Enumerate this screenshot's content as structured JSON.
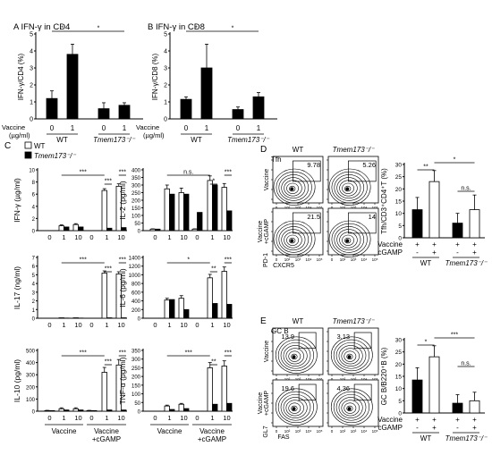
{
  "chart_data": [
    {
      "id": "A",
      "type": "bar",
      "panel_letter": "A",
      "title": "IFN-γ in CD4",
      "ylabel": "IFN-γ/CD4 (%)",
      "ylim": [
        0,
        5
      ],
      "yticks": [
        0,
        1,
        2,
        3,
        4,
        5
      ],
      "dose_label_1": "Vaccine",
      "dose_label_2": "(µg/ml)",
      "categories": [
        "0",
        "1",
        "0",
        "1"
      ],
      "groups": [
        "WT",
        "Tmem173⁻/⁻"
      ],
      "values": [
        1.2,
        3.8,
        0.6,
        0.8
      ],
      "errors": [
        0.45,
        0.6,
        0.35,
        0.15
      ],
      "sig": [
        "*",
        "*"
      ]
    },
    {
      "id": "B",
      "type": "bar",
      "panel_letter": "B",
      "title": "IFN-γ in CD8",
      "ylabel": "IFN-γ/CD8 (%)",
      "ylim": [
        0,
        5
      ],
      "yticks": [
        0,
        1,
        2,
        3,
        4,
        5
      ],
      "dose_label_1": "Vaccine",
      "dose_label_2": "(µg/ml)",
      "categories": [
        "0",
        "1",
        "0",
        "1"
      ],
      "groups": [
        "WT",
        "Tmem173⁻/⁻"
      ],
      "values": [
        1.15,
        3.0,
        0.55,
        1.3
      ],
      "errors": [
        0.15,
        1.4,
        0.15,
        0.25
      ],
      "sig": [
        "*",
        "*"
      ]
    },
    {
      "id": "C_legend",
      "type": "legend",
      "panel_letter": "C",
      "series": [
        {
          "name": "WT",
          "color": "#ffffff"
        },
        {
          "name": "Tmem173⁻/⁻",
          "color": "#000000"
        }
      ]
    },
    {
      "id": "C1",
      "type": "bar",
      "ylabel": "IFN-γ (µg/ml)",
      "ylim": [
        0,
        10
      ],
      "yticks": [
        0,
        2,
        4,
        6,
        8,
        10
      ],
      "categories": [
        "0",
        "1",
        "10",
        "0",
        "1",
        "10"
      ],
      "series": [
        {
          "name": "WT",
          "values": [
            0,
            0.8,
            1.0,
            0,
            6.6,
            7.3
          ]
        },
        {
          "name": "Tmem173⁻/⁻",
          "values": [
            0,
            0.6,
            0.6,
            0,
            0.4,
            0.5
          ]
        }
      ],
      "errors_wt": [
        0,
        0.15,
        0.15,
        0,
        0.3,
        0.4
      ],
      "sig": [
        "***",
        "***",
        "***"
      ]
    },
    {
      "id": "C2",
      "type": "bar",
      "ylabel": "IL-2 (pg/ml)",
      "ylim": [
        0,
        400
      ],
      "yticks": [
        0,
        50,
        100,
        150,
        200,
        250,
        300,
        350,
        400
      ],
      "categories": [
        "0",
        "1",
        "10",
        "0",
        "1",
        "10"
      ],
      "series": [
        {
          "name": "WT",
          "values": [
            10,
            275,
            250,
            10,
            330,
            285
          ]
        },
        {
          "name": "Tmem173⁻/⁻",
          "values": [
            10,
            240,
            240,
            120,
            300,
            130
          ]
        }
      ],
      "errors_wt": [
        2,
        25,
        30,
        2,
        30,
        25
      ],
      "sig": [
        "n.s.",
        "*",
        "***"
      ]
    },
    {
      "id": "C3",
      "type": "bar",
      "ylabel": "IL-17 (ng/ml)",
      "ylim": [
        0,
        7
      ],
      "yticks": [
        0,
        1,
        2,
        3,
        4,
        5,
        6,
        7
      ],
      "categories": [
        "0",
        "1",
        "10",
        "0",
        "1",
        "10"
      ],
      "series": [
        {
          "name": "WT",
          "values": [
            0,
            0.05,
            0.05,
            0,
            5.2,
            5.1
          ]
        },
        {
          "name": "Tmem173⁻/⁻",
          "values": [
            0,
            0.02,
            0.02,
            0,
            0.05,
            0.05
          ]
        }
      ],
      "errors_wt": [
        0,
        0,
        0,
        0,
        0.25,
        0.25
      ],
      "sig": [
        "***",
        "***",
        "***"
      ]
    },
    {
      "id": "C4",
      "type": "bar",
      "ylabel": "IL-6 (pg/ml)",
      "ylim": [
        0,
        1400
      ],
      "yticks": [
        0,
        200,
        400,
        600,
        800,
        1000,
        1200,
        1400
      ],
      "categories": [
        "0",
        "1",
        "10",
        "0",
        "1",
        "10"
      ],
      "series": [
        {
          "name": "WT",
          "values": [
            0,
            420,
            460,
            0,
            930,
            1080
          ]
        },
        {
          "name": "Tmem173⁻/⁻",
          "values": [
            0,
            430,
            200,
            0,
            340,
            320
          ]
        }
      ],
      "errors_wt": [
        0,
        40,
        60,
        0,
        80,
        100
      ],
      "sig": [
        "*",
        "**",
        "***"
      ]
    },
    {
      "id": "C5",
      "type": "bar",
      "ylabel": "IL-10 (pg/ml)",
      "ylim": [
        0,
        500
      ],
      "yticks": [
        0,
        100,
        200,
        300,
        400,
        500
      ],
      "categories": [
        "0",
        "1",
        "10",
        "0",
        "1",
        "10"
      ],
      "series": [
        {
          "name": "WT",
          "values": [
            5,
            20,
            20,
            5,
            320,
            380
          ]
        },
        {
          "name": "Tmem173⁻/⁻",
          "values": [
            5,
            10,
            10,
            5,
            10,
            10
          ]
        }
      ],
      "errors_wt": [
        2,
        8,
        8,
        2,
        40,
        45
      ],
      "sig": [
        "***",
        "***",
        "***"
      ]
    },
    {
      "id": "C6",
      "type": "bar",
      "ylabel": "TNF-α (pg/ml)",
      "ylim": [
        0,
        350
      ],
      "yticks": [
        0,
        50,
        100,
        150,
        200,
        250,
        300,
        350
      ],
      "categories": [
        "0",
        "1",
        "10",
        "0",
        "1",
        "10"
      ],
      "series": [
        {
          "name": "WT",
          "values": [
            0,
            30,
            40,
            0,
            250,
            260
          ]
        },
        {
          "name": "Tmem173⁻/⁻",
          "values": [
            0,
            10,
            15,
            0,
            40,
            45
          ]
        }
      ],
      "errors_wt": [
        0,
        5,
        5,
        0,
        30,
        30
      ],
      "sig": [
        "***",
        "**",
        "***"
      ]
    },
    {
      "id": "D",
      "type": "bar",
      "panel_letter": "D",
      "title": "Tfh",
      "ylabel": "Tfh/CD3⁺CD4⁺T (%)",
      "ylim": [
        0,
        30
      ],
      "yticks": [
        0,
        5,
        10,
        15,
        20,
        25,
        30
      ],
      "values": [
        11.5,
        23,
        6,
        11.5
      ],
      "errors": [
        5,
        4.5,
        4,
        6
      ],
      "colors": [
        "#000000",
        "#ffffff",
        "#000000",
        "#ffffff"
      ],
      "row_labels": [
        "Vaccine",
        "cGAMP"
      ],
      "row_vaccine": [
        "+",
        "+",
        "+",
        "+"
      ],
      "row_cgamp": [
        "-",
        "+",
        "-",
        "+"
      ],
      "groups": [
        "WT",
        "Tmem173⁻/⁻"
      ],
      "sig": [
        "**",
        "*",
        "n.s."
      ]
    },
    {
      "id": "E",
      "type": "bar",
      "panel_letter": "E",
      "title": "GC B",
      "ylabel": "GC B/B220⁺B (%)",
      "ylim": [
        0,
        30
      ],
      "yticks": [
        0,
        5,
        10,
        15,
        20,
        25,
        30
      ],
      "values": [
        13.5,
        23,
        4,
        5
      ],
      "errors": [
        5,
        4.5,
        3.5,
        3.5
      ],
      "colors": [
        "#000000",
        "#ffffff",
        "#000000",
        "#ffffff"
      ],
      "row_labels": [
        "Vaccine",
        "cGAMP"
      ],
      "row_vaccine": [
        "+",
        "+",
        "+",
        "+"
      ],
      "row_cgamp": [
        "-",
        "+",
        "-",
        "+"
      ],
      "groups": [
        "WT",
        "Tmem173⁻/⁻"
      ],
      "sig": [
        "*",
        "***",
        "n.s."
      ]
    }
  ],
  "labels": {
    "c_x_groups": [
      "Vaccine",
      "Vaccine",
      "+cGAMP"
    ],
    "flow_D": {
      "col_wt": "WT",
      "col_ko": "Tmem173⁻/⁻",
      "row1": "Vaccine",
      "row2_a": "Vaccine",
      "row2_b": "+cGAMP",
      "y_axis": "PD-1",
      "x_axis": "CXCR5",
      "gates": [
        "9.78",
        "5.26",
        "21.5",
        "14"
      ]
    },
    "flow_E": {
      "col_wt": "WT",
      "col_ko": "Tmem173⁻/⁻",
      "row1": "Vaccine",
      "row2_a": "Vaccine",
      "row2_b": "+cGAMP",
      "y_axis": "GL7",
      "x_axis": "FAS",
      "gates": [
        "13.9",
        "3.13",
        "19.6",
        "4.36"
      ]
    },
    "flow_tick_labels": [
      "0",
      "10²",
      "10³",
      "10⁴",
      "10⁵"
    ]
  },
  "colors": {
    "wt_fill": "#ffffff",
    "ko_fill": "#000000",
    "stroke": "#000000"
  }
}
